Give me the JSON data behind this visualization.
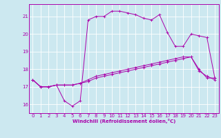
{
  "title": "",
  "xlabel": "Windchill (Refroidissement éolien,°C)",
  "ylabel": "",
  "background_color": "#cce8f0",
  "grid_color": "#ffffff",
  "line_color": "#aa00aa",
  "xlim": [
    -0.5,
    23.5
  ],
  "ylim": [
    15.5,
    21.7
  ],
  "xticks": [
    0,
    1,
    2,
    3,
    4,
    5,
    6,
    7,
    8,
    9,
    10,
    11,
    12,
    13,
    14,
    15,
    16,
    17,
    18,
    19,
    20,
    21,
    22,
    23
  ],
  "yticks": [
    16,
    17,
    18,
    19,
    20,
    21
  ],
  "curve1_x": [
    0,
    1,
    2,
    3,
    4,
    5,
    6,
    7,
    8,
    9,
    10,
    11,
    12,
    13,
    14,
    15,
    16,
    17,
    18,
    19,
    20,
    21,
    22,
    23
  ],
  "curve1_y": [
    17.4,
    17.0,
    17.0,
    17.1,
    16.2,
    15.9,
    16.2,
    20.8,
    21.0,
    21.0,
    21.3,
    21.3,
    21.2,
    21.1,
    20.9,
    20.8,
    21.1,
    20.1,
    19.3,
    19.3,
    20.0,
    19.9,
    19.8,
    17.5
  ],
  "curve2_x": [
    0,
    1,
    2,
    3,
    4,
    5,
    6,
    7,
    8,
    9,
    10,
    11,
    12,
    13,
    14,
    15,
    16,
    17,
    18,
    19,
    20,
    21,
    22,
    23
  ],
  "curve2_y": [
    17.4,
    17.0,
    17.0,
    17.1,
    17.1,
    17.1,
    17.2,
    17.3,
    17.5,
    17.6,
    17.7,
    17.8,
    17.9,
    18.0,
    18.1,
    18.2,
    18.3,
    18.4,
    18.5,
    18.6,
    18.7,
    17.9,
    17.6,
    17.4
  ],
  "curve3_x": [
    0,
    1,
    2,
    3,
    4,
    5,
    6,
    7,
    8,
    9,
    10,
    11,
    12,
    13,
    14,
    15,
    16,
    17,
    18,
    19,
    20,
    21,
    22,
    23
  ],
  "curve3_y": [
    17.4,
    17.0,
    17.0,
    17.1,
    17.1,
    17.1,
    17.2,
    17.4,
    17.6,
    17.7,
    17.8,
    17.9,
    18.0,
    18.1,
    18.2,
    18.3,
    18.4,
    18.5,
    18.6,
    18.7,
    18.7,
    18.0,
    17.5,
    17.5
  ],
  "tick_fontsize": 5,
  "xlabel_fontsize": 5,
  "lw": 0.7,
  "marker_size": 2.5
}
